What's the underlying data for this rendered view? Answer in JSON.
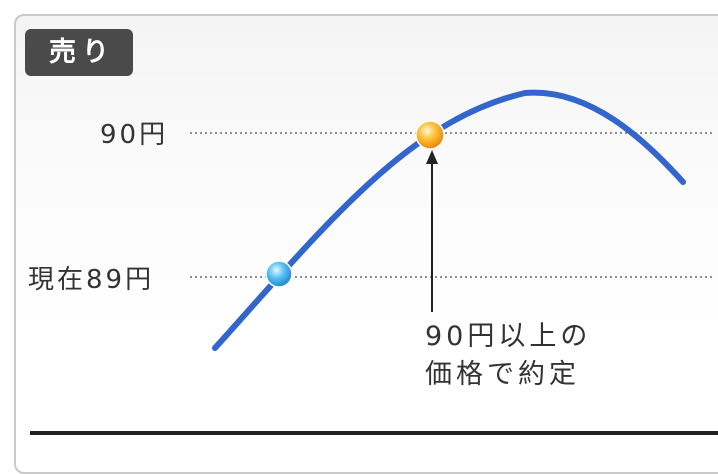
{
  "badge": {
    "label": "売り"
  },
  "levels": {
    "target_label": "90円",
    "current_label": "現在89円"
  },
  "note": {
    "line1": "90円以上の",
    "line2": "価格で約定"
  },
  "colors": {
    "curve": "#3366cc",
    "current_marker": "#3aaae6",
    "target_marker": "#f2a81d",
    "badge_bg": "#4a4a4a"
  }
}
